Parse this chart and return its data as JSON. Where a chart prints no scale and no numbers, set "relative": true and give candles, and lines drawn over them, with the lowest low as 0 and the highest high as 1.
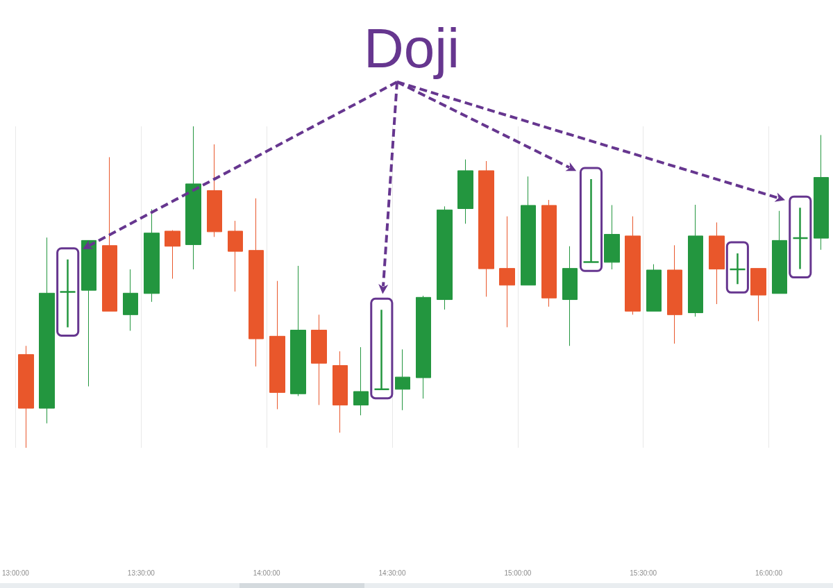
{
  "chart_data": {
    "type": "candlestick",
    "relative": true,
    "annotations": [
      "Doji"
    ],
    "x": [
      13.042,
      13.125,
      13.208,
      13.292,
      13.375,
      13.458,
      13.542,
      13.625,
      13.708,
      13.792,
      13.875,
      13.958,
      14.042,
      14.125,
      14.208,
      14.292,
      14.375,
      14.458,
      14.542,
      14.625,
      14.708,
      14.792,
      14.875,
      14.958,
      15.042,
      15.125,
      15.208,
      15.292,
      15.375,
      15.458,
      15.542,
      15.625,
      15.708,
      15.792,
      15.875,
      15.958,
      16.042,
      16.125,
      16.208
    ],
    "ohlc": [
      [
        0.29,
        0.317,
        0,
        0.123
      ],
      [
        0.123,
        0.654,
        0.076,
        0.481
      ],
      [
        0.485,
        0.586,
        0.375,
        0.485
      ],
      [
        0.49,
        0.645,
        0.191,
        0.645
      ],
      [
        0.629,
        0.904,
        0.425,
        0.425
      ],
      [
        0.414,
        0.555,
        0.364,
        0.481
      ],
      [
        0.48,
        0.742,
        0.454,
        0.668
      ],
      [
        0.674,
        0.677,
        0.526,
        0.627
      ],
      [
        0.632,
        1,
        0.555,
        0.821
      ],
      [
        0.8,
        0.944,
        0.656,
        0.672
      ],
      [
        0.674,
        0.706,
        0.486,
        0.611
      ],
      [
        0.614,
        0.776,
        0.253,
        0.339
      ],
      [
        0.347,
        0.519,
        0.12,
        0.172
      ],
      [
        0.168,
        0.566,
        0.161,
        0.366
      ],
      [
        0.366,
        0.414,
        0.133,
        0.263
      ],
      [
        0.256,
        0.3,
        0.047,
        0.133
      ],
      [
        0.133,
        0.313,
        0.101,
        0.175
      ],
      [
        0.182,
        0.429,
        0.18,
        0.182
      ],
      [
        0.182,
        0.306,
        0.117,
        0.22
      ],
      [
        0.218,
        0.473,
        0.153,
        0.468
      ],
      [
        0.461,
        0.751,
        0.43,
        0.74
      ],
      [
        0.744,
        0.897,
        0.697,
        0.862
      ],
      [
        0.862,
        0.892,
        0.47,
        0.557
      ],
      [
        0.558,
        0.72,
        0.375,
        0.506
      ],
      [
        0.506,
        0.844,
        0.506,
        0.754
      ],
      [
        0.754,
        0.771,
        0.439,
        0.466
      ],
      [
        0.461,
        0.627,
        0.317,
        0.558
      ],
      [
        0.578,
        0.836,
        0.576,
        0.578
      ],
      [
        0.577,
        0.755,
        0.555,
        0.664
      ],
      [
        0.659,
        0.72,
        0.414,
        0.425
      ],
      [
        0.425,
        0.571,
        0.425,
        0.553
      ],
      [
        0.553,
        0.63,
        0.324,
        0.414
      ],
      [
        0.42,
        0.756,
        0.408,
        0.659
      ],
      [
        0.659,
        0.701,
        0.447,
        0.556
      ],
      [
        0.555,
        0.605,
        0.509,
        0.555
      ],
      [
        0.558,
        0.558,
        0.394,
        0.475
      ],
      [
        0.48,
        0.737,
        0.48,
        0.645
      ],
      [
        0.652,
        0.747,
        0.556,
        0.652
      ],
      [
        0.652,
        0.973,
        0.616,
        0.841
      ]
    ],
    "colors": [
      "#e9572b",
      "#23963f",
      "#23963f",
      "#23963f",
      "#e9572b",
      "#23963f",
      "#23963f",
      "#e9572b",
      "#23963f",
      "#e9572b",
      "#e9572b",
      "#e9572b",
      "#e9572b",
      "#23963f",
      "#e9572b",
      "#e9572b",
      "#23963f",
      "#23963f",
      "#23963f",
      "#23963f",
      "#23963f",
      "#23963f",
      "#e9572b",
      "#e9572b",
      "#23963f",
      "#e9572b",
      "#23963f",
      "#23963f",
      "#23963f",
      "#e9572b",
      "#23963f",
      "#e9572b",
      "#23963f",
      "#e9572b",
      "#23963f",
      "#e9572b",
      "#23963f",
      "#23963f",
      "#23963f"
    ],
    "xlim": [
      13,
      16.25
    ],
    "xticks": [
      {
        "value": 13,
        "label": "13:00:00"
      },
      {
        "value": 13.5,
        "label": "13:30:00"
      },
      {
        "value": 14,
        "label": "14:00:00"
      },
      {
        "value": 14.5,
        "label": "14:30:00"
      },
      {
        "value": 15,
        "label": "15:00:00"
      },
      {
        "value": 15.5,
        "label": "15:30:00"
      },
      {
        "value": 16,
        "label": "16:00:00"
      }
    ],
    "grid": true,
    "tick_labels": "x"
  }
}
